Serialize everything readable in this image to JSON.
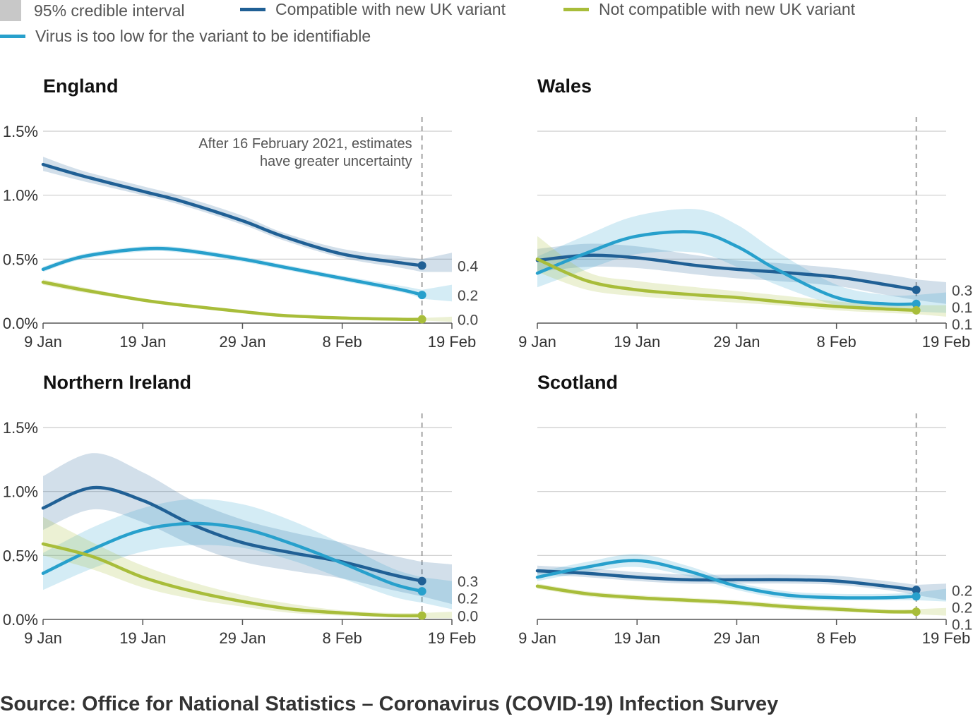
{
  "legend": {
    "interval_label": "95% credible interval",
    "series": [
      {
        "key": "compatible",
        "label": "Compatible with new UK variant",
        "color": "#206095"
      },
      {
        "key": "not_compatible",
        "label": "Not compatible with new UK variant",
        "color": "#a8bd3a"
      },
      {
        "key": "low_virus",
        "label": "Virus is too low for the variant to be identifiable",
        "color": "#27a0cc"
      }
    ],
    "interval_color": "#c8c8c8"
  },
  "source": "Source: Office for National Statistics – Coronavirus (COVID-19) Infection Survey",
  "chart_data": [
    {
      "type": "line",
      "title": "England",
      "x": [
        0,
        4,
        10,
        14,
        20,
        24,
        30,
        36,
        38
      ],
      "x_ticks": {
        "positions": [
          0,
          10,
          20,
          30,
          41
        ],
        "labels": [
          "9 Jan",
          "19 Jan",
          "29 Jan",
          "8 Feb",
          "19 Feb"
        ]
      },
      "y_ticks": {
        "values": [
          0,
          0.5,
          1.0,
          1.5
        ],
        "labels": [
          "0.0%",
          "0.5%",
          "1.0%",
          "1.5%"
        ]
      },
      "xlim": [
        0,
        41
      ],
      "ylim": [
        0,
        1.5
      ],
      "cutoff_x": 38,
      "annotation": [
        "After 16 February 2021, estimates",
        "have greater uncertainty"
      ],
      "series": [
        {
          "key": "compatible",
          "name": "Compatible with new UK variant",
          "values": [
            1.24,
            1.15,
            1.03,
            0.95,
            0.8,
            0.68,
            0.54,
            0.47,
            0.45
          ],
          "lower": [
            1.19,
            1.11,
            1.0,
            0.92,
            0.77,
            0.65,
            0.51,
            0.43,
            0.4
          ],
          "upper": [
            1.3,
            1.19,
            1.07,
            0.99,
            0.84,
            0.71,
            0.58,
            0.52,
            0.5
          ],
          "end_label": "0.4",
          "band_extend": [
            0.4,
            0.55
          ]
        },
        {
          "key": "low_virus",
          "name": "Virus is too low for the variant to be identifiable",
          "values": [
            0.42,
            0.52,
            0.58,
            0.57,
            0.5,
            0.44,
            0.35,
            0.26,
            0.22
          ],
          "lower": [
            0.4,
            0.5,
            0.56,
            0.55,
            0.48,
            0.42,
            0.33,
            0.24,
            0.19
          ],
          "upper": [
            0.44,
            0.54,
            0.6,
            0.59,
            0.52,
            0.46,
            0.37,
            0.29,
            0.26
          ],
          "end_label": "0.2",
          "band_extend": [
            0.17,
            0.3
          ]
        },
        {
          "key": "not_compatible",
          "name": "Not compatible with new UK variant",
          "values": [
            0.32,
            0.26,
            0.18,
            0.14,
            0.09,
            0.06,
            0.04,
            0.03,
            0.03
          ],
          "lower": [
            0.3,
            0.24,
            0.17,
            0.13,
            0.08,
            0.05,
            0.03,
            0.02,
            0.02
          ],
          "upper": [
            0.34,
            0.28,
            0.19,
            0.15,
            0.1,
            0.07,
            0.05,
            0.04,
            0.04
          ],
          "end_label": "0.0",
          "band_extend": [
            0.01,
            0.05
          ]
        }
      ]
    },
    {
      "type": "line",
      "title": "Wales",
      "x": [
        0,
        5,
        10,
        16,
        20,
        24,
        30,
        35,
        38
      ],
      "x_ticks": {
        "positions": [
          0,
          10,
          20,
          30,
          41
        ],
        "labels": [
          "9 Jan",
          "19 Jan",
          "29 Jan",
          "8 Feb",
          "19 Feb"
        ]
      },
      "y_ticks": {
        "values": [
          0,
          0.5,
          1.0,
          1.5
        ],
        "labels": [
          "",
          "",
          "",
          ""
        ]
      },
      "xlim": [
        0,
        41
      ],
      "ylim": [
        0,
        1.5
      ],
      "cutoff_x": 38,
      "series": [
        {
          "key": "compatible",
          "name": "Compatible with new UK variant",
          "values": [
            0.49,
            0.53,
            0.51,
            0.45,
            0.42,
            0.4,
            0.36,
            0.3,
            0.26
          ],
          "lower": [
            0.4,
            0.44,
            0.43,
            0.38,
            0.35,
            0.33,
            0.29,
            0.22,
            0.18
          ],
          "upper": [
            0.58,
            0.62,
            0.6,
            0.53,
            0.49,
            0.47,
            0.43,
            0.38,
            0.34
          ],
          "end_label": "0.3",
          "band_extend": [
            0.15,
            0.32
          ]
        },
        {
          "key": "low_virus",
          "name": "Virus is too low for the variant to be identifiable",
          "values": [
            0.39,
            0.55,
            0.68,
            0.71,
            0.6,
            0.42,
            0.2,
            0.15,
            0.15
          ],
          "lower": [
            0.28,
            0.42,
            0.54,
            0.55,
            0.44,
            0.3,
            0.14,
            0.1,
            0.09
          ],
          "upper": [
            0.52,
            0.69,
            0.84,
            0.89,
            0.77,
            0.56,
            0.3,
            0.22,
            0.22
          ],
          "end_label": "0.1",
          "band_extend": [
            0.08,
            0.24
          ]
        },
        {
          "key": "not_compatible",
          "name": "Not compatible with new UK variant",
          "values": [
            0.5,
            0.33,
            0.26,
            0.22,
            0.2,
            0.17,
            0.13,
            0.11,
            0.1
          ],
          "lower": [
            0.4,
            0.26,
            0.21,
            0.18,
            0.16,
            0.14,
            0.1,
            0.08,
            0.07
          ],
          "upper": [
            0.68,
            0.4,
            0.33,
            0.28,
            0.25,
            0.22,
            0.17,
            0.14,
            0.14
          ],
          "end_label": "0.1",
          "band_extend": [
            0.05,
            0.14
          ]
        }
      ]
    },
    {
      "type": "line",
      "title": "Northern Ireland",
      "x": [
        0,
        5,
        10,
        15,
        20,
        25,
        30,
        35,
        38
      ],
      "x_ticks": {
        "positions": [
          0,
          10,
          20,
          30,
          41
        ],
        "labels": [
          "9 Jan",
          "19 Jan",
          "29 Jan",
          "8 Feb",
          "19 Feb"
        ]
      },
      "y_ticks": {
        "values": [
          0,
          0.5,
          1.0,
          1.5
        ],
        "labels": [
          "0.0%",
          "0.5%",
          "1.0%",
          "1.5%"
        ]
      },
      "xlim": [
        0,
        41
      ],
      "ylim": [
        0,
        1.5
      ],
      "cutoff_x": 38,
      "series": [
        {
          "key": "compatible",
          "name": "Compatible with new UK variant",
          "values": [
            0.87,
            1.03,
            0.93,
            0.74,
            0.6,
            0.52,
            0.45,
            0.35,
            0.3
          ],
          "lower": [
            0.7,
            0.86,
            0.76,
            0.58,
            0.45,
            0.38,
            0.32,
            0.23,
            0.18
          ],
          "upper": [
            1.12,
            1.3,
            1.15,
            0.93,
            0.78,
            0.68,
            0.6,
            0.5,
            0.45
          ],
          "end_label": "0.3",
          "band_extend": [
            0.12,
            0.43
          ]
        },
        {
          "key": "low_virus",
          "name": "Virus is too low for the variant to be identifiable",
          "values": [
            0.36,
            0.55,
            0.7,
            0.75,
            0.71,
            0.59,
            0.44,
            0.28,
            0.22
          ],
          "lower": [
            0.23,
            0.4,
            0.53,
            0.58,
            0.56,
            0.46,
            0.32,
            0.18,
            0.13
          ],
          "upper": [
            0.52,
            0.72,
            0.87,
            0.94,
            0.9,
            0.77,
            0.59,
            0.4,
            0.33
          ],
          "end_label": "0.2",
          "band_extend": [
            0.08,
            0.3
          ]
        },
        {
          "key": "not_compatible",
          "name": "Not compatible with new UK variant",
          "values": [
            0.59,
            0.49,
            0.33,
            0.22,
            0.14,
            0.08,
            0.05,
            0.03,
            0.03
          ],
          "lower": [
            0.5,
            0.39,
            0.25,
            0.16,
            0.1,
            0.05,
            0.03,
            0.02,
            0.01
          ],
          "upper": [
            0.8,
            0.6,
            0.42,
            0.29,
            0.19,
            0.12,
            0.07,
            0.05,
            0.05
          ],
          "end_label": "0.0",
          "band_extend": [
            0.01,
            0.06
          ]
        }
      ]
    },
    {
      "type": "line",
      "title": "Scotland",
      "x": [
        0,
        5,
        10,
        15,
        20,
        25,
        30,
        35,
        38
      ],
      "x_ticks": {
        "positions": [
          0,
          10,
          20,
          30,
          41
        ],
        "labels": [
          "9 Jan",
          "19 Jan",
          "29 Jan",
          "8 Feb",
          "19 Feb"
        ]
      },
      "y_ticks": {
        "values": [
          0,
          0.5,
          1.0,
          1.5
        ],
        "labels": [
          "",
          "",
          "",
          ""
        ]
      },
      "xlim": [
        0,
        41
      ],
      "ylim": [
        0,
        1.5
      ],
      "cutoff_x": 38,
      "series": [
        {
          "key": "compatible",
          "name": "Compatible with new UK variant",
          "values": [
            0.38,
            0.36,
            0.33,
            0.31,
            0.31,
            0.31,
            0.3,
            0.26,
            0.23
          ],
          "lower": [
            0.35,
            0.33,
            0.3,
            0.28,
            0.28,
            0.28,
            0.27,
            0.23,
            0.19
          ],
          "upper": [
            0.42,
            0.4,
            0.37,
            0.35,
            0.35,
            0.35,
            0.34,
            0.3,
            0.27
          ],
          "end_label": "0.2",
          "band_extend": [
            0.15,
            0.28
          ]
        },
        {
          "key": "low_virus",
          "name": "Virus is too low for the variant to be identifiable",
          "values": [
            0.33,
            0.41,
            0.46,
            0.38,
            0.26,
            0.19,
            0.17,
            0.17,
            0.18
          ],
          "lower": [
            0.3,
            0.37,
            0.41,
            0.34,
            0.23,
            0.16,
            0.15,
            0.15,
            0.15
          ],
          "upper": [
            0.37,
            0.45,
            0.51,
            0.42,
            0.29,
            0.22,
            0.2,
            0.2,
            0.21
          ],
          "end_label": "0.2",
          "band_extend": [
            0.14,
            0.24
          ]
        },
        {
          "key": "not_compatible",
          "name": "Not compatible with new UK variant",
          "values": [
            0.26,
            0.2,
            0.17,
            0.15,
            0.13,
            0.1,
            0.08,
            0.06,
            0.06
          ],
          "lower": [
            0.24,
            0.18,
            0.15,
            0.13,
            0.11,
            0.08,
            0.06,
            0.05,
            0.04
          ],
          "upper": [
            0.28,
            0.22,
            0.19,
            0.17,
            0.15,
            0.12,
            0.1,
            0.08,
            0.08
          ],
          "end_label": "0.1",
          "band_extend": [
            0.03,
            0.09
          ]
        }
      ]
    }
  ]
}
